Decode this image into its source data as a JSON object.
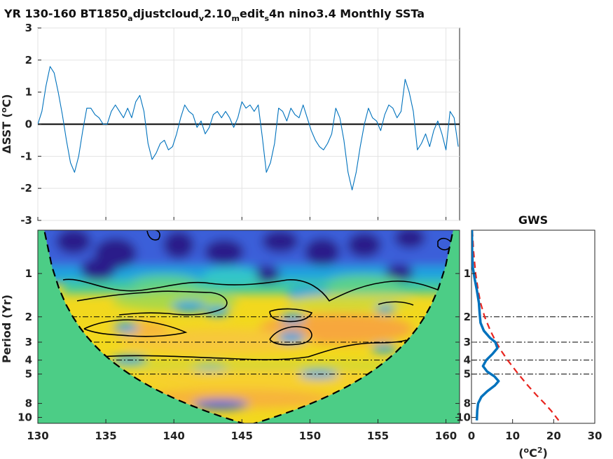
{
  "chart_data": [
    {
      "type": "line",
      "title_parts": [
        {
          "text": "YR 130-160 BT1850",
          "sub": false
        },
        {
          "text": "a",
          "sub": true
        },
        {
          "text": "djustcloud",
          "sub": false
        },
        {
          "text": "v",
          "sub": true
        },
        {
          "text": "2.10",
          "sub": false
        },
        {
          "text": "m",
          "sub": true
        },
        {
          "text": "edit",
          "sub": false
        },
        {
          "text": "s",
          "sub": true
        },
        {
          "text": "4n nino3.4 Monthly SSTa",
          "sub": false
        }
      ],
      "ylabel_parts": [
        {
          "text": "ΔSST (",
          "sup": false
        },
        {
          "text": "o",
          "sup": true
        },
        {
          "text": "C)",
          "sup": false
        }
      ],
      "xlim": [
        130,
        161
      ],
      "ylim": [
        -3,
        3
      ],
      "yticks": [
        "-3",
        "-2",
        "-1",
        "0",
        "1",
        "2",
        "3"
      ],
      "grid": true,
      "zero_line": true,
      "line_color": "#0072bd",
      "series": [
        {
          "x": [
            130,
            130.3,
            130.6,
            130.9,
            131.2,
            131.5,
            131.8,
            132.1,
            132.4,
            132.7,
            133,
            133.3,
            133.6,
            133.9,
            134.2,
            134.5,
            134.8,
            135.1,
            135.4,
            135.7,
            136,
            136.3,
            136.6,
            136.9,
            137.2,
            137.5,
            137.8,
            138.1,
            138.4,
            138.7,
            139,
            139.3,
            139.6,
            139.9,
            140.2,
            140.5,
            140.8,
            141.1,
            141.4,
            141.7,
            142,
            142.3,
            142.6,
            142.9,
            143.2,
            143.5,
            143.8,
            144.1,
            144.4,
            144.7,
            145,
            145.3,
            145.6,
            145.9,
            146.2,
            146.5,
            146.8,
            147.1,
            147.4,
            147.7,
            148,
            148.3,
            148.6,
            148.9,
            149.2,
            149.5,
            149.8,
            150.1,
            150.4,
            150.7,
            151,
            151.3,
            151.6,
            151.9,
            152.2,
            152.5,
            152.8,
            153.1,
            153.4,
            153.7,
            154,
            154.3,
            154.6,
            154.9,
            155.2,
            155.5,
            155.8,
            156.1,
            156.4,
            156.7,
            157,
            157.3,
            157.6,
            157.9,
            158.2,
            158.5,
            158.8,
            159.1,
            159.4,
            159.7,
            160,
            160.3,
            160.6,
            160.9
          ],
          "y": [
            0.0,
            0.4,
            1.2,
            1.8,
            1.6,
            1.0,
            0.3,
            -0.5,
            -1.2,
            -1.5,
            -1.0,
            -0.2,
            0.5,
            0.5,
            0.3,
            0.2,
            0.0,
            0.0,
            0.4,
            0.6,
            0.4,
            0.2,
            0.5,
            0.2,
            0.7,
            0.9,
            0.4,
            -0.6,
            -1.1,
            -0.9,
            -0.6,
            -0.5,
            -0.8,
            -0.7,
            -0.3,
            0.2,
            0.6,
            0.4,
            0.3,
            -0.1,
            0.1,
            -0.3,
            -0.1,
            0.3,
            0.4,
            0.2,
            0.4,
            0.2,
            -0.1,
            0.2,
            0.7,
            0.5,
            0.6,
            0.4,
            0.6,
            -0.4,
            -1.5,
            -1.2,
            -0.6,
            0.5,
            0.4,
            0.1,
            0.5,
            0.3,
            0.2,
            0.6,
            0.2,
            -0.2,
            -0.5,
            -0.7,
            -0.8,
            -0.6,
            -0.3,
            0.5,
            0.2,
            -0.5,
            -1.5,
            -2.05,
            -1.5,
            -0.7,
            0.0,
            0.5,
            0.2,
            0.1,
            -0.2,
            0.3,
            0.6,
            0.5,
            0.2,
            0.4,
            1.4,
            1.0,
            0.4,
            -0.8,
            -0.6,
            -0.3,
            -0.7,
            -0.2,
            0.1,
            -0.3,
            -0.8,
            0.4,
            0.2,
            -0.7
          ]
        }
      ]
    },
    {
      "type": "heatmap",
      "xticks": [
        "130",
        "135",
        "140",
        "145",
        "150",
        "155",
        "160"
      ],
      "xlim": [
        130,
        161
      ],
      "yticks": [
        "1",
        "2",
        "3",
        "4",
        "5",
        "8",
        "10"
      ],
      "y_scale": "log",
      "ylim": [
        0.5,
        11
      ],
      "ylabel": "Period (Yr)",
      "cone_of_influence": true,
      "reference_lines": [
        2,
        3,
        4,
        5
      ]
    },
    {
      "type": "line",
      "title": "GWS",
      "xticks": [
        "0",
        "10",
        "20",
        "30"
      ],
      "xlim": [
        0,
        30
      ],
      "xlabel_parts": [
        {
          "text": "(",
          "sup": false
        },
        {
          "text": "o",
          "sup": true
        },
        {
          "text": "C",
          "sup": false
        },
        {
          "text": "2",
          "sup": true
        },
        {
          "text": ")",
          "sup": false
        }
      ],
      "yticks": [
        "1",
        "2",
        "3",
        "4",
        "5",
        "8",
        "10"
      ],
      "y_scale": "log",
      "ylim": [
        0.5,
        11
      ],
      "reference_lines": [
        2,
        3,
        4,
        5
      ],
      "series": [
        {
          "style": "solid",
          "color": "#0072bd",
          "period": [
            0.5,
            0.7,
            0.9,
            1.1,
            1.3,
            1.6,
            1.9,
            2.2,
            2.5,
            2.8,
            3.0,
            3.3,
            3.6,
            4.0,
            4.4,
            4.8,
            5.2,
            5.6,
            6.0,
            6.6,
            7.2,
            8.0,
            9.0,
            10.5
          ],
          "power": [
            0.1,
            0.15,
            0.3,
            0.8,
            1.3,
            1.8,
            2.0,
            2.2,
            3.0,
            4.5,
            5.8,
            6.3,
            5.2,
            3.6,
            2.8,
            3.8,
            5.6,
            6.6,
            5.7,
            3.8,
            2.4,
            1.6,
            1.4,
            1.3
          ]
        },
        {
          "style": "dashed",
          "color": "#e8251f",
          "period": [
            0.5,
            0.7,
            1.0,
            1.3,
            1.6,
            2.0,
            2.5,
            3.0,
            3.5,
            4.0,
            5.0,
            6.0,
            7.0,
            8.0,
            9.0,
            10.5
          ],
          "power": [
            0.2,
            0.5,
            1.0,
            1.6,
            2.2,
            3.2,
            4.6,
            6.0,
            7.4,
            8.8,
            11.4,
            13.7,
            15.8,
            17.8,
            19.4,
            21.2
          ]
        }
      ]
    }
  ]
}
